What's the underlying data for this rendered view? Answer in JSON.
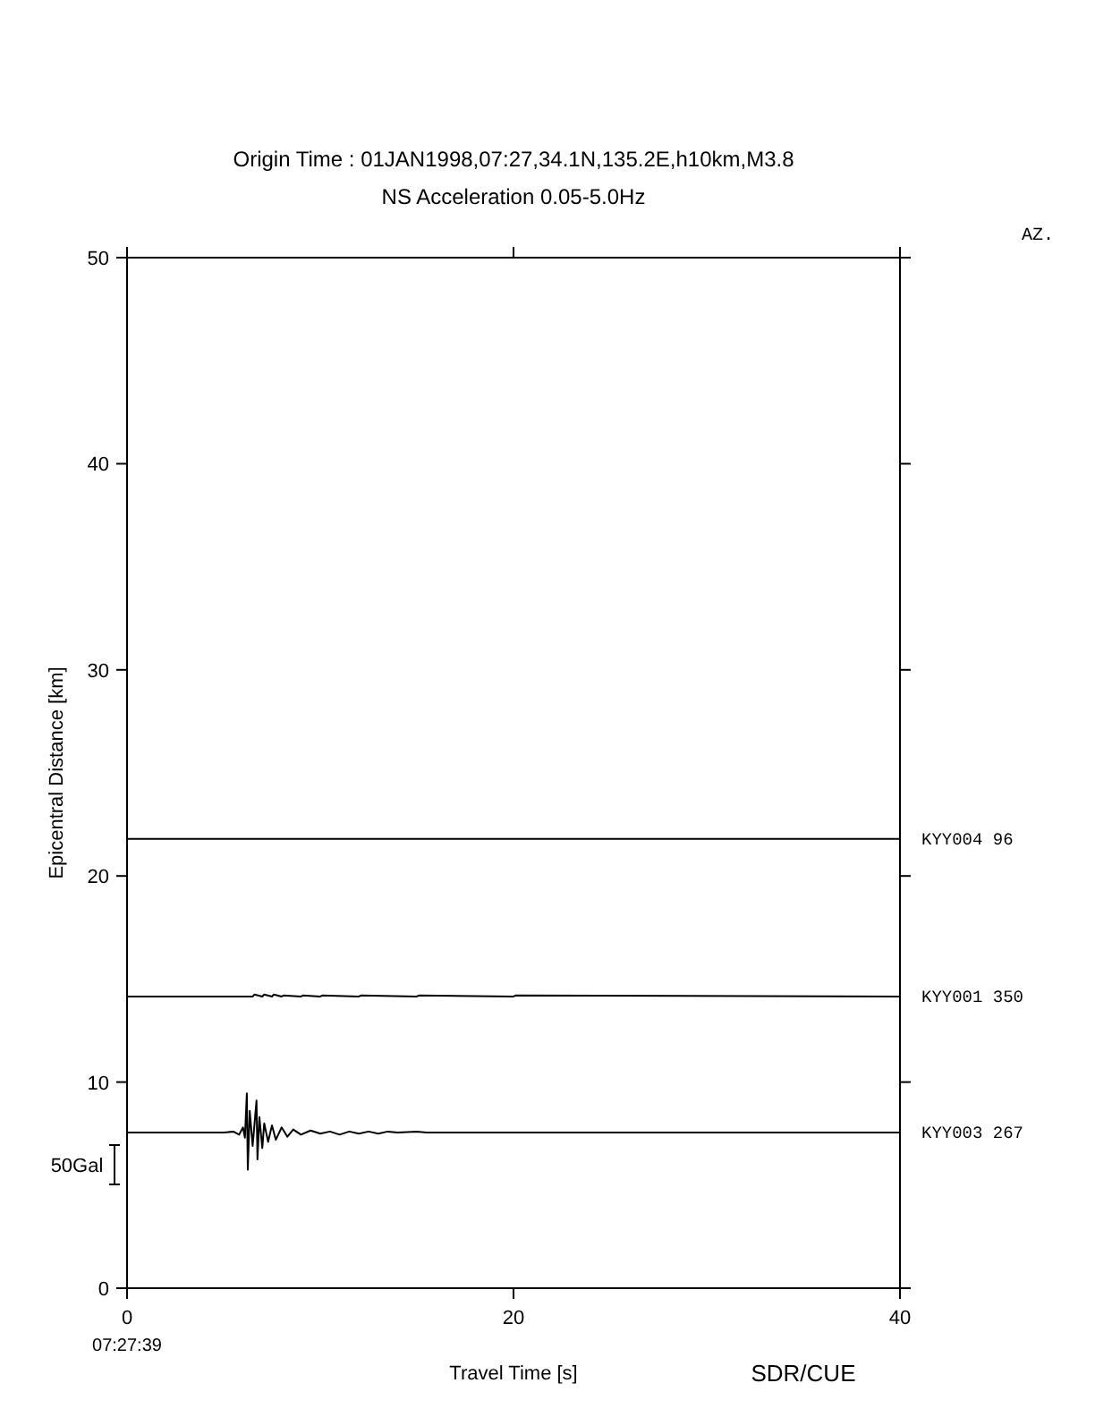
{
  "chart_data": {
    "type": "line",
    "title": "Origin Time : 01JAN1998,07:27,34.1N,135.2E,h10km,M3.8",
    "subtitle": "NS Acceleration 0.05-5.0Hz",
    "xlabel": "Travel Time [s]",
    "ylabel": "Epicentral Distance [km]",
    "xlim": [
      0,
      40
    ],
    "xticks": [
      0,
      20,
      40
    ],
    "ylim": [
      0,
      50
    ],
    "yticks": [
      0,
      10,
      20,
      30,
      40,
      50
    ],
    "grid": false,
    "marker": "none",
    "line_style": "solid",
    "series": [
      {
        "name": "KYY004 96",
        "color": "#000000",
        "x": [
          0,
          40
        ],
        "values": [
          21.8,
          21.8
        ]
      },
      {
        "name": "KYY001 350",
        "color": "#000000",
        "x": [
          0,
          6.5,
          6.6,
          7,
          7.1,
          7.5,
          7.6,
          8,
          8.1,
          9,
          9.1,
          10,
          10.1,
          12,
          12.1,
          15,
          15.1,
          20,
          20.1,
          40
        ],
        "values": [
          14.15,
          14.15,
          14.25,
          14.15,
          14.25,
          14.15,
          14.25,
          14.15,
          14.2,
          14.15,
          14.2,
          14.15,
          14.2,
          14.15,
          14.2,
          14.15,
          14.2,
          14.15,
          14.2,
          14.15
        ]
      },
      {
        "name": "KYY003 267",
        "color": "#000000",
        "x": [
          0,
          5,
          5.5,
          5.8,
          6,
          6.1,
          6.2,
          6.25,
          6.35,
          6.5,
          6.7,
          6.75,
          6.85,
          7,
          7.1,
          7.3,
          7.5,
          7.7,
          8,
          8.3,
          8.6,
          9,
          9.5,
          10,
          10.5,
          11,
          11.5,
          12,
          12.5,
          13,
          13.5,
          14,
          15,
          15.5,
          40
        ],
        "values": [
          7.55,
          7.55,
          7.6,
          7.45,
          7.8,
          7.3,
          9.45,
          5.75,
          8.6,
          6.9,
          9.1,
          6.25,
          8.3,
          6.8,
          8,
          7.1,
          7.9,
          7.2,
          7.8,
          7.35,
          7.7,
          7.45,
          7.65,
          7.5,
          7.6,
          7.45,
          7.6,
          7.5,
          7.6,
          7.5,
          7.6,
          7.55,
          7.6,
          7.55,
          7.55
        ]
      }
    ],
    "annotations": [
      "AZ.",
      "07:27:39",
      "50Gal",
      "SDR/CUE"
    ]
  }
}
